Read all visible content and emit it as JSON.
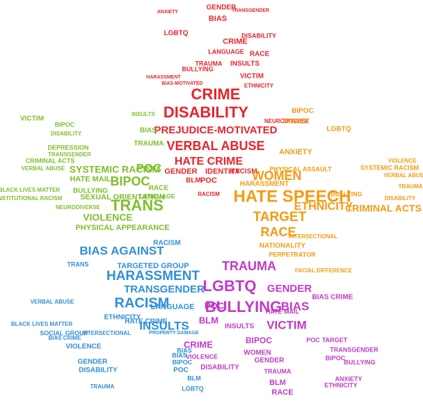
{
  "colors": {
    "red": "#e8232a",
    "green": "#7dbf2b",
    "orange": "#f59a12",
    "blue": "#2e8fd8",
    "magenta": "#c13ac6"
  },
  "hands": {
    "red": {
      "color": "red",
      "words": [
        "CRIME",
        "DISABILITY",
        "PREJUDICE-MOTIVATED",
        "VERBAL ABUSE",
        "HATE CRIME",
        "GENDER",
        "IDENTITY",
        "RACISM",
        "BLM",
        "POC",
        "LGBTQ",
        "BIAS",
        "ANXIETY",
        "GENDER",
        "RACE",
        "DISABILITY",
        "VICTIM",
        "INSULTS",
        "TRAUMA",
        "ETHNICITY",
        "CRIME",
        "LANGUAGE",
        "BULLYING",
        "HARASSMENT",
        "NEURODIVERSE",
        "BIAS-MOTIVATED",
        "TRANSGENDER",
        "RACISM"
      ]
    },
    "green": {
      "color": "green",
      "words": [
        "POC",
        "BIPOC",
        "TRANS",
        "SYSTEMIC RACISM",
        "HATE MAIL",
        "SEXUAL ORIENTATION",
        "VIOLENCE",
        "PHYSICAL APPEARANCE",
        "BULLYING",
        "RACE",
        "BIAS",
        "TRAUMA",
        "DEPRESSION",
        "VICTIM",
        "BIPOC",
        "DISABILITY",
        "CRIMINAL ACTS",
        "VERBAL ABUSE",
        "BLACK LIVES MATTER",
        "INSTITUTIONAL RACISM",
        "TRANSGENDER",
        "NEURODIVERSE",
        "LANGUAGE",
        "INSULTS"
      ]
    },
    "orange": {
      "color": "orange",
      "words": [
        "HATE SPEECH",
        "WOMEN",
        "TARGET",
        "RACE",
        "ETHNICITY",
        "CRIMINAL ACTS",
        "ANXIETY",
        "PHYSICAL ASSAULT",
        "HARASSMENT",
        "NATIONALITY",
        "PERPETRATOR",
        "SYSTEMIC RACISM",
        "VIOLENCE",
        "VERBAL ABUSE",
        "BIPOC",
        "TARGET",
        "LGBTQ",
        "FACIAL DIFFERENCE",
        "DISABILITY",
        "TRAUMA",
        "BULLYING",
        "INTERSECTIONAL"
      ]
    },
    "blue": {
      "color": "blue",
      "words": [
        "BIAS AGAINST",
        "HARASSMENT",
        "TARGETED GROUP",
        "TRANSGENDER",
        "RACISM",
        "INSULTS",
        "LANGUAGE",
        "ETHNICITY",
        "HATE CRIME",
        "BIAS CRIME",
        "VIOLENCE",
        "SOCIAL GROUP",
        "GENDER",
        "DISABILITY",
        "TRAUMA",
        "BLACK LIVES MATTER",
        "TRANS",
        "INTERSECTIONAL",
        "PROPERTY DAMAGE",
        "VERBAL ABUSE",
        "BIAS",
        "RACISM",
        "POC",
        "BIAS",
        "BIPOC",
        "BLM",
        "LGBTQ"
      ]
    },
    "magenta": {
      "color": "magenta",
      "words": [
        "BULLYING",
        "LGBTQ",
        "TRAUMA",
        "GENDER",
        "BIAS",
        "VICTIM",
        "POC",
        "BLM",
        "BIPOC",
        "CRIME",
        "BIAS CRIME",
        "INSULTS",
        "WOMEN",
        "BLM",
        "RACE",
        "ANXIETY",
        "ETHNICITY",
        "HATE MAIL",
        "VIOLENCE",
        "TARGET",
        "TRANSGENDER",
        "BULLYING",
        "BIPOC",
        "DISABILITY",
        "GENDER",
        "TRAUMA",
        "POC"
      ]
    }
  }
}
